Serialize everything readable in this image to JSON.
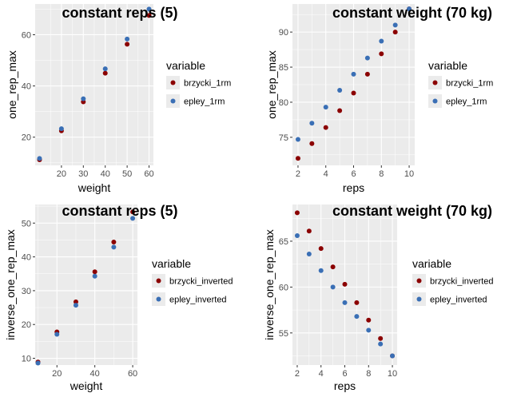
{
  "colors": {
    "brzycki": "#8b0000",
    "epley": "#3a6fb5",
    "panel": "#ebebeb",
    "grid_major": "#ffffff"
  },
  "chart_data": [
    {
      "type": "scatter",
      "title": "constant reps (5)",
      "xlabel": "weight",
      "ylabel": "one_rep_max",
      "xlim": [
        8,
        62
      ],
      "ylim": [
        9,
        72
      ],
      "xticks": [
        20,
        30,
        40,
        50,
        60
      ],
      "yticks": [
        20,
        40,
        60
      ],
      "legend_title": "variable",
      "legend_position": "right",
      "series": [
        {
          "name": "brzycki_1rm",
          "color_key": "brzycki",
          "x": [
            10,
            20,
            30,
            40,
            50,
            60
          ],
          "y": [
            11.2,
            22.5,
            33.8,
            45.0,
            56.3,
            67.5
          ]
        },
        {
          "name": "epley_1rm",
          "color_key": "epley",
          "x": [
            10,
            20,
            30,
            40,
            50,
            60
          ],
          "y": [
            11.7,
            23.3,
            35.0,
            46.7,
            58.3,
            70.0
          ]
        }
      ]
    },
    {
      "type": "scatter",
      "title": "constant weight (70 kg)",
      "xlabel": "reps",
      "ylabel": "one_rep_max",
      "xlim": [
        1.6,
        10.4
      ],
      "ylim": [
        71.0,
        94.0
      ],
      "xticks": [
        2,
        4,
        6,
        8,
        10
      ],
      "yticks": [
        75,
        80,
        85,
        90
      ],
      "legend_title": "variable",
      "legend_position": "right",
      "series": [
        {
          "name": "brzycki_1rm",
          "color_key": "brzycki",
          "x": [
            2,
            3,
            4,
            5,
            6,
            7,
            8,
            9,
            10
          ],
          "y": [
            72.0,
            74.1,
            76.4,
            78.8,
            81.3,
            84.0,
            86.9,
            90.0,
            93.3
          ]
        },
        {
          "name": "epley_1rm",
          "color_key": "epley",
          "x": [
            2,
            3,
            4,
            5,
            6,
            7,
            8,
            9,
            10
          ],
          "y": [
            74.7,
            77.0,
            79.3,
            81.7,
            84.0,
            86.3,
            88.7,
            91.0,
            93.3
          ]
        }
      ]
    },
    {
      "type": "scatter",
      "title": "constant reps (5)",
      "xlabel": "weight",
      "ylabel": "inverse_one_rep_max",
      "xlim": [
        8.5,
        62.5
      ],
      "ylim": [
        8.0,
        55.5
      ],
      "xticks": [
        20,
        40,
        60
      ],
      "yticks": [
        10,
        20,
        30,
        40,
        50
      ],
      "legend_title": "variable",
      "legend_position": "right",
      "series": [
        {
          "name": "brzycki_inverted",
          "color_key": "brzycki",
          "x": [
            10,
            20,
            30,
            40,
            50,
            60
          ],
          "y": [
            8.9,
            17.8,
            26.7,
            35.6,
            44.4,
            53.3
          ]
        },
        {
          "name": "epley_inverted",
          "color_key": "epley",
          "x": [
            10,
            20,
            30,
            40,
            50,
            60
          ],
          "y": [
            8.6,
            17.1,
            25.7,
            34.3,
            42.9,
            51.4
          ]
        }
      ]
    },
    {
      "type": "scatter",
      "title": "constant weight (70 kg)",
      "xlabel": "reps",
      "ylabel": "inverse_one_rep_max",
      "xlim": [
        1.6,
        10.4
      ],
      "ylim": [
        51.5,
        69.0
      ],
      "xticks": [
        2,
        4,
        6,
        8,
        10
      ],
      "yticks": [
        55,
        60,
        65
      ],
      "legend_title": "variable",
      "legend_position": "right",
      "series": [
        {
          "name": "brzycki_inverted",
          "color_key": "brzycki",
          "x": [
            2,
            3,
            4,
            5,
            6,
            7,
            8,
            9,
            10
          ],
          "y": [
            68.1,
            66.1,
            64.2,
            62.2,
            60.3,
            58.3,
            56.4,
            54.4,
            52.5
          ]
        },
        {
          "name": "epley_inverted",
          "color_key": "epley",
          "x": [
            2,
            3,
            4,
            5,
            6,
            7,
            8,
            9,
            10
          ],
          "y": [
            65.6,
            63.6,
            61.8,
            60.0,
            58.3,
            56.8,
            55.3,
            53.8,
            52.5
          ]
        }
      ]
    }
  ]
}
